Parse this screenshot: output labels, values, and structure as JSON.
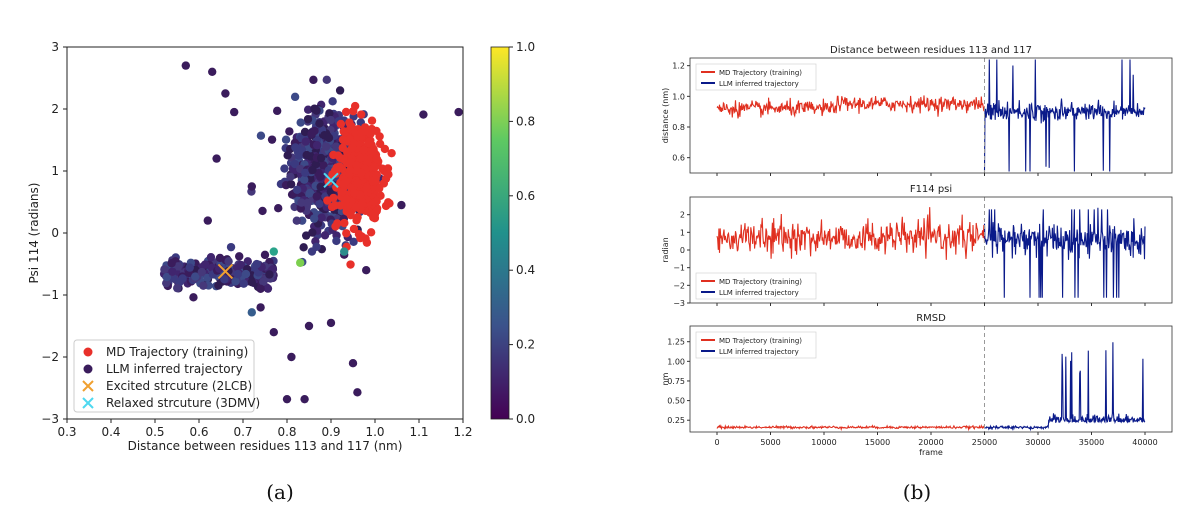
{
  "panel_a": {
    "caption": "(a)",
    "xlabel": "Distance between residues 113 and 117 (nm)",
    "ylabel": "Psi 114 (radians)",
    "xlim": [
      0.3,
      1.2
    ],
    "ylim": [
      -3,
      3
    ],
    "xticks": [
      "0.3",
      "0.4",
      "0.5",
      "0.6",
      "0.7",
      "0.8",
      "0.9",
      "1.0",
      "1.1",
      "1.2"
    ],
    "yticks": [
      "3",
      "2",
      "1",
      "0",
      "−1",
      "−2",
      "−3"
    ],
    "colorbar": {
      "ticks": [
        "1.0",
        "0.8",
        "0.6",
        "0.4",
        "0.2",
        "0.0"
      ],
      "colors": [
        "#440154",
        "#3b528b",
        "#21918c",
        "#5ec962",
        "#fde725"
      ]
    },
    "legend": [
      {
        "label": "MD Trajectory (training)",
        "marker": "dot",
        "color": "#e8302a"
      },
      {
        "label": "LLM inferred trajectory",
        "marker": "dot",
        "color": "#3a1c5c"
      },
      {
        "label": "Excited strcuture (2LCB)",
        "marker": "x",
        "color": "#f0a030"
      },
      {
        "label": "Relaxed strcuture (3DMV)",
        "marker": "x",
        "color": "#4fd8f0"
      }
    ]
  },
  "panel_b": {
    "caption": "(b)",
    "frame_label": "frame",
    "frame_ticks": [
      "0",
      "5000",
      "10000",
      "15000",
      "20000",
      "25000",
      "30000",
      "35000",
      "40000"
    ],
    "legend": [
      {
        "label": "MD Trajectory (training)",
        "color": "#e03020"
      },
      {
        "label": "LLM inferred trajectory",
        "color": "#0a1a8a"
      }
    ],
    "subplots": [
      {
        "title": "Distance between residues 113 and 117",
        "ylabel": "distance (nm)",
        "yticks": [
          "1.2",
          "1.0",
          "0.8",
          "0.6"
        ]
      },
      {
        "title": "F114 psi",
        "ylabel": "radian",
        "yticks": [
          "2",
          "1",
          "0",
          "−1",
          "−2",
          "−3"
        ]
      },
      {
        "title": "RMSD",
        "ylabel": "nm",
        "yticks": [
          "1.25",
          "1.00",
          "0.75",
          "0.50",
          "0.25"
        ]
      }
    ]
  },
  "chart_data": [
    {
      "type": "scatter",
      "xlabel": "Distance between residues 113 and 117 (nm)",
      "ylabel": "Psi 114 (radians)",
      "xlim": [
        0.3,
        1.2
      ],
      "ylim": [
        -3,
        3
      ],
      "colorbar_range": [
        0,
        1
      ],
      "series": [
        {
          "name": "MD Trajectory (training)",
          "cluster_center": [
            0.96,
            0.9
          ]
        },
        {
          "name": "LLM inferred trajectory",
          "clusters": [
            [
              0.88,
              1.0
            ],
            [
              0.64,
              -0.65
            ]
          ]
        },
        {
          "name": "Excited strcuture (2LCB)",
          "points": [
            [
              0.66,
              -0.62
            ]
          ]
        },
        {
          "name": "Relaxed strcuture (3DMV)",
          "points": [
            [
              0.9,
              0.85
            ]
          ]
        }
      ]
    },
    {
      "type": "line",
      "title": "Distance between residues 113 and 117",
      "ylabel": "distance (nm)",
      "xlabel": "frame",
      "xlim": [
        0,
        40000
      ],
      "ylim": [
        0.5,
        1.25
      ],
      "series": [
        {
          "name": "MD Trajectory (training)",
          "x_range": [
            0,
            25000
          ],
          "mean": 0.92
        },
        {
          "name": "LLM inferred trajectory",
          "x_range": [
            25000,
            40000
          ],
          "mean": 0.9
        }
      ]
    },
    {
      "type": "line",
      "title": "F114 psi",
      "ylabel": "radian",
      "xlabel": "frame",
      "xlim": [
        0,
        40000
      ],
      "ylim": [
        -3,
        3
      ],
      "series": [
        {
          "name": "MD Trajectory (training)",
          "x_range": [
            0,
            25000
          ],
          "mean": 0.7
        },
        {
          "name": "LLM inferred trajectory",
          "x_range": [
            25000,
            40000
          ],
          "mean": 0.6
        }
      ]
    },
    {
      "type": "line",
      "title": "RMSD",
      "ylabel": "nm",
      "xlabel": "frame",
      "xlim": [
        0,
        40000
      ],
      "ylim": [
        0.1,
        1.45
      ],
      "series": [
        {
          "name": "MD Trajectory (training)",
          "x_range": [
            0,
            25000
          ],
          "mean": 0.16
        },
        {
          "name": "LLM inferred trajectory",
          "x_range": [
            25000,
            40000
          ],
          "mean": 0.2
        }
      ]
    }
  ]
}
